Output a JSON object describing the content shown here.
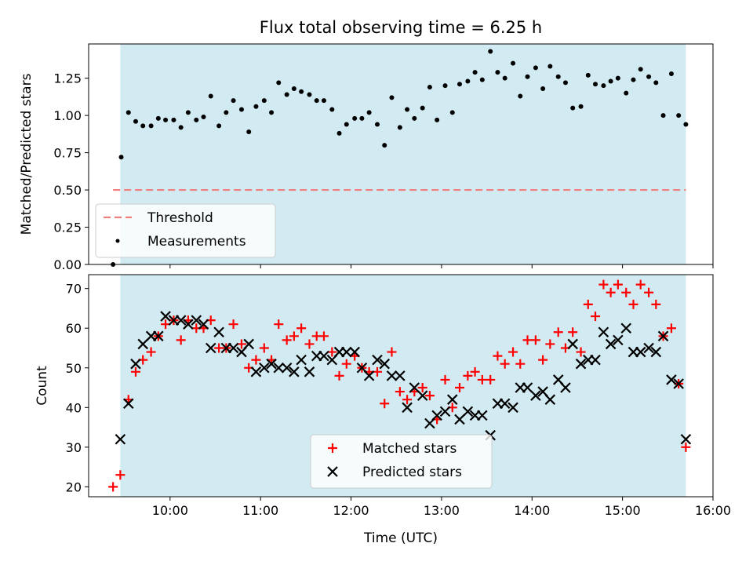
{
  "chart_data": {
    "type": "scatter",
    "title": "Flux total observing time = 6.25 h",
    "xlabel": "Time (UTC)",
    "x_unit": "hours",
    "x_ticks": [
      {
        "value": 10,
        "label": "10:00"
      },
      {
        "value": 11,
        "label": "11:00"
      },
      {
        "value": 12,
        "label": "12:00"
      },
      {
        "value": 13,
        "label": "13:00"
      },
      {
        "value": 14,
        "label": "14:00"
      },
      {
        "value": 15,
        "label": "15:00"
      },
      {
        "value": 16,
        "label": "16:00"
      }
    ],
    "xlim": [
      9.1,
      16.0
    ],
    "shaded_interval": [
      9.45,
      15.7
    ],
    "colors": {
      "shade": "#add8e6",
      "threshold": "#f08080",
      "matched": "#ff0000",
      "predicted": "#000000",
      "measurement": "#000000"
    },
    "panels": [
      {
        "name": "ratio",
        "ylabel": "Matched/Predicted stars",
        "ylim": [
          0,
          1.48
        ],
        "y_ticks": [
          "0.00",
          "0.25",
          "0.50",
          "0.75",
          "1.00",
          "1.25"
        ],
        "threshold": {
          "name": "Threshold",
          "value": 0.5,
          "x_range": [
            9.37,
            15.7
          ]
        },
        "legend": {
          "location": "lower left",
          "entries": [
            "Threshold",
            "Measurements"
          ]
        },
        "series": [
          {
            "name": "Measurements",
            "marker": "dot",
            "points": [
              [
                9.37,
                0.0
              ],
              [
                9.46,
                0.72
              ],
              [
                9.54,
                1.02
              ],
              [
                9.62,
                0.96
              ],
              [
                9.7,
                0.93
              ],
              [
                9.79,
                0.93
              ],
              [
                9.87,
                0.98
              ],
              [
                9.95,
                0.97
              ],
              [
                10.04,
                0.97
              ],
              [
                10.12,
                0.92
              ],
              [
                10.2,
                1.02
              ],
              [
                10.29,
                0.97
              ],
              [
                10.37,
                0.99
              ],
              [
                10.45,
                1.13
              ],
              [
                10.54,
                0.93
              ],
              [
                10.62,
                1.02
              ],
              [
                10.7,
                1.1
              ],
              [
                10.79,
                1.04
              ],
              [
                10.87,
                0.89
              ],
              [
                10.95,
                1.06
              ],
              [
                11.04,
                1.1
              ],
              [
                11.12,
                1.02
              ],
              [
                11.2,
                1.22
              ],
              [
                11.29,
                1.14
              ],
              [
                11.37,
                1.18
              ],
              [
                11.45,
                1.16
              ],
              [
                11.54,
                1.14
              ],
              [
                11.62,
                1.1
              ],
              [
                11.7,
                1.1
              ],
              [
                11.79,
                1.04
              ],
              [
                11.87,
                0.88
              ],
              [
                11.95,
                0.94
              ],
              [
                12.04,
                0.98
              ],
              [
                12.12,
                0.98
              ],
              [
                12.2,
                1.02
              ],
              [
                12.29,
                0.94
              ],
              [
                12.37,
                0.8
              ],
              [
                12.45,
                1.12
              ],
              [
                12.54,
                0.92
              ],
              [
                12.62,
                1.04
              ],
              [
                12.7,
                0.98
              ],
              [
                12.79,
                1.05
              ],
              [
                12.87,
                1.19
              ],
              [
                12.95,
                0.97
              ],
              [
                13.04,
                1.2
              ],
              [
                13.12,
                1.02
              ],
              [
                13.2,
                1.21
              ],
              [
                13.29,
                1.23
              ],
              [
                13.37,
                1.29
              ],
              [
                13.45,
                1.24
              ],
              [
                13.54,
                1.43
              ],
              [
                13.62,
                1.29
              ],
              [
                13.7,
                1.25
              ],
              [
                13.79,
                1.35
              ],
              [
                13.87,
                1.13
              ],
              [
                13.95,
                1.26
              ],
              [
                14.04,
                1.32
              ],
              [
                14.12,
                1.18
              ],
              [
                14.2,
                1.33
              ],
              [
                14.29,
                1.26
              ],
              [
                14.37,
                1.22
              ],
              [
                14.45,
                1.05
              ],
              [
                14.54,
                1.06
              ],
              [
                14.62,
                1.27
              ],
              [
                14.7,
                1.21
              ],
              [
                14.79,
                1.2
              ],
              [
                14.87,
                1.23
              ],
              [
                14.95,
                1.25
              ],
              [
                15.04,
                1.15
              ],
              [
                15.12,
                1.24
              ],
              [
                15.2,
                1.31
              ],
              [
                15.29,
                1.26
              ],
              [
                15.37,
                1.22
              ],
              [
                15.45,
                1.0
              ],
              [
                15.54,
                1.28
              ],
              [
                15.62,
                1.0
              ],
              [
                15.7,
                0.94
              ]
            ]
          }
        ]
      },
      {
        "name": "counts",
        "ylabel": "Count",
        "ylim": [
          17.5,
          73.5
        ],
        "y_ticks": [
          "20",
          "30",
          "40",
          "50",
          "60",
          "70"
        ],
        "legend": {
          "location": "lower center",
          "entries": [
            "Matched stars",
            "Predicted stars"
          ]
        },
        "series": [
          {
            "name": "Matched stars",
            "marker": "plus",
            "points": [
              [
                9.37,
                20
              ],
              [
                9.45,
                23
              ],
              [
                9.54,
                42
              ],
              [
                9.62,
                49
              ],
              [
                9.7,
                52
              ],
              [
                9.79,
                54
              ],
              [
                9.87,
                58
              ],
              [
                9.95,
                61
              ],
              [
                10.04,
                62
              ],
              [
                10.12,
                57
              ],
              [
                10.2,
                62
              ],
              [
                10.29,
                60
              ],
              [
                10.37,
                60
              ],
              [
                10.45,
                62
              ],
              [
                10.54,
                55
              ],
              [
                10.62,
                55
              ],
              [
                10.7,
                61
              ],
              [
                10.79,
                56
              ],
              [
                10.87,
                50
              ],
              [
                10.95,
                52
              ],
              [
                11.04,
                55
              ],
              [
                11.12,
                52
              ],
              [
                11.2,
                61
              ],
              [
                11.29,
                57
              ],
              [
                11.37,
                58
              ],
              [
                11.45,
                60
              ],
              [
                11.54,
                56
              ],
              [
                11.62,
                58
              ],
              [
                11.7,
                58
              ],
              [
                11.79,
                54
              ],
              [
                11.87,
                48
              ],
              [
                11.95,
                51
              ],
              [
                12.04,
                53
              ],
              [
                12.12,
                50
              ],
              [
                12.2,
                49
              ],
              [
                12.29,
                49
              ],
              [
                12.37,
                41
              ],
              [
                12.45,
                54
              ],
              [
                12.54,
                44
              ],
              [
                12.62,
                42
              ],
              [
                12.7,
                44
              ],
              [
                12.79,
                45
              ],
              [
                12.87,
                43
              ],
              [
                12.95,
                37
              ],
              [
                13.04,
                47
              ],
              [
                13.12,
                40
              ],
              [
                13.2,
                45
              ],
              [
                13.29,
                48
              ],
              [
                13.37,
                49
              ],
              [
                13.45,
                47
              ],
              [
                13.54,
                47
              ],
              [
                13.62,
                53
              ],
              [
                13.7,
                51
              ],
              [
                13.79,
                54
              ],
              [
                13.87,
                51
              ],
              [
                13.95,
                57
              ],
              [
                14.04,
                57
              ],
              [
                14.12,
                52
              ],
              [
                14.2,
                56
              ],
              [
                14.29,
                59
              ],
              [
                14.37,
                55
              ],
              [
                14.45,
                59
              ],
              [
                14.54,
                54
              ],
              [
                14.62,
                66
              ],
              [
                14.7,
                63
              ],
              [
                14.79,
                71
              ],
              [
                14.87,
                69
              ],
              [
                14.95,
                71
              ],
              [
                15.04,
                69
              ],
              [
                15.12,
                66
              ],
              [
                15.2,
                71
              ],
              [
                15.29,
                69
              ],
              [
                15.37,
                66
              ],
              [
                15.45,
                58
              ],
              [
                15.54,
                60
              ],
              [
                15.62,
                46
              ],
              [
                15.7,
                30
              ]
            ]
          },
          {
            "name": "Predicted stars",
            "marker": "x",
            "points": [
              [
                9.45,
                32
              ],
              [
                9.54,
                41
              ],
              [
                9.62,
                51
              ],
              [
                9.7,
                56
              ],
              [
                9.79,
                58
              ],
              [
                9.87,
                58
              ],
              [
                9.95,
                63
              ],
              [
                10.04,
                62
              ],
              [
                10.12,
                62
              ],
              [
                10.2,
                61
              ],
              [
                10.29,
                62
              ],
              [
                10.37,
                61
              ],
              [
                10.45,
                55
              ],
              [
                10.54,
                59
              ],
              [
                10.62,
                55
              ],
              [
                10.7,
                55
              ],
              [
                10.79,
                54
              ],
              [
                10.87,
                56
              ],
              [
                10.95,
                49
              ],
              [
                11.04,
                50
              ],
              [
                11.12,
                51
              ],
              [
                11.2,
                50
              ],
              [
                11.29,
                50
              ],
              [
                11.37,
                49
              ],
              [
                11.45,
                52
              ],
              [
                11.54,
                49
              ],
              [
                11.62,
                53
              ],
              [
                11.7,
                53
              ],
              [
                11.79,
                52
              ],
              [
                11.87,
                54
              ],
              [
                11.95,
                54
              ],
              [
                12.04,
                54
              ],
              [
                12.12,
                50
              ],
              [
                12.2,
                48
              ],
              [
                12.29,
                52
              ],
              [
                12.37,
                51
              ],
              [
                12.45,
                48
              ],
              [
                12.54,
                48
              ],
              [
                12.62,
                40
              ],
              [
                12.7,
                45
              ],
              [
                12.79,
                43
              ],
              [
                12.87,
                36
              ],
              [
                12.95,
                38
              ],
              [
                13.04,
                39
              ],
              [
                13.12,
                42
              ],
              [
                13.2,
                37
              ],
              [
                13.29,
                39
              ],
              [
                13.37,
                38
              ],
              [
                13.45,
                38
              ],
              [
                13.54,
                33
              ],
              [
                13.62,
                41
              ],
              [
                13.7,
                41
              ],
              [
                13.79,
                40
              ],
              [
                13.87,
                45
              ],
              [
                13.95,
                45
              ],
              [
                14.04,
                43
              ],
              [
                14.12,
                44
              ],
              [
                14.2,
                42
              ],
              [
                14.29,
                47
              ],
              [
                14.37,
                45
              ],
              [
                14.45,
                56
              ],
              [
                14.54,
                51
              ],
              [
                14.62,
                52
              ],
              [
                14.7,
                52
              ],
              [
                14.79,
                59
              ],
              [
                14.87,
                56
              ],
              [
                14.95,
                57
              ],
              [
                15.04,
                60
              ],
              [
                15.12,
                54
              ],
              [
                15.2,
                54
              ],
              [
                15.29,
                55
              ],
              [
                15.37,
                54
              ],
              [
                15.45,
                58
              ],
              [
                15.54,
                47
              ],
              [
                15.62,
                46
              ],
              [
                15.7,
                32
              ]
            ]
          }
        ]
      }
    ]
  }
}
